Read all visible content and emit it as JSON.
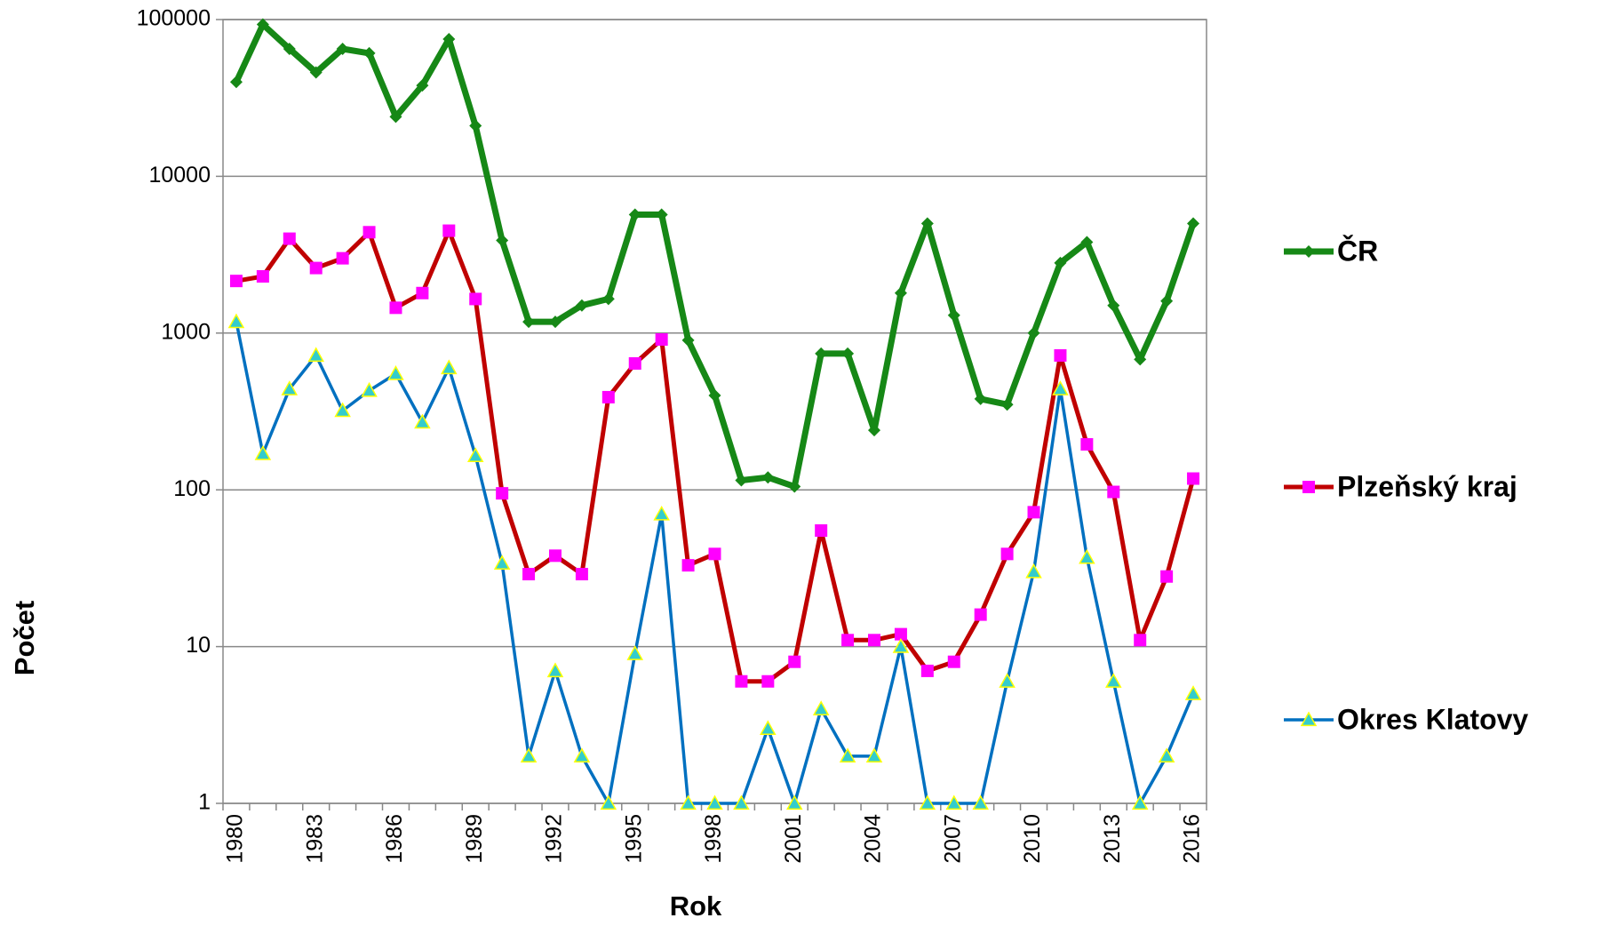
{
  "chart_data": {
    "type": "line",
    "xlabel": "Rok",
    "ylabel": "Počet",
    "categories": [
      1980,
      null,
      null,
      1983,
      null,
      null,
      1986,
      null,
      null,
      1989,
      null,
      null,
      1992,
      null,
      null,
      1995,
      null,
      null,
      1998,
      null,
      null,
      2001,
      null,
      null,
      2004,
      null,
      null,
      2007,
      null,
      null,
      2010,
      null,
      null,
      2013,
      null,
      null,
      2016
    ],
    "series": [
      {
        "name": "ČR",
        "color": "#168816",
        "marker": "diamond",
        "marker_color": "#168816",
        "values": [
          40000,
          93000,
          65000,
          46000,
          65000,
          61000,
          24000,
          38000,
          75000,
          21000,
          3900,
          1180,
          1180,
          1500,
          1650,
          5700,
          5700,
          900,
          400,
          115,
          120,
          105,
          740,
          740,
          240,
          1800,
          5000,
          1300,
          380,
          350,
          1000,
          2800,
          3800,
          1500,
          680,
          1600,
          5000
        ]
      },
      {
        "name": "Plzeňský kraj",
        "color": "#c00000",
        "marker": "square",
        "marker_color": "#ff00ff",
        "values": [
          2150,
          2300,
          4000,
          2600,
          3000,
          4400,
          1450,
          1800,
          4500,
          1650,
          95,
          29,
          38,
          29,
          390,
          640,
          910,
          33,
          39,
          6,
          6,
          8,
          55,
          11,
          11,
          12,
          7,
          8,
          16,
          39,
          72,
          720,
          195,
          97,
          11,
          28,
          118
        ]
      },
      {
        "name": "Okres Klatovy",
        "color": "#0070c0",
        "marker": "triangle",
        "marker_color": "#33cccc",
        "values": [
          1180,
          170,
          440,
          720,
          320,
          430,
          550,
          270,
          600,
          165,
          34,
          2,
          7,
          2,
          1,
          9,
          70,
          1,
          1,
          1,
          3,
          1,
          4,
          2,
          2,
          10,
          1,
          1,
          1,
          6,
          30,
          440,
          37,
          6,
          1,
          2,
          5
        ]
      }
    ],
    "ylim": [
      1,
      100000
    ],
    "yticks": [
      1,
      10,
      100,
      1000,
      10000,
      100000
    ],
    "log_y": true,
    "grid": true,
    "legend": "right"
  }
}
